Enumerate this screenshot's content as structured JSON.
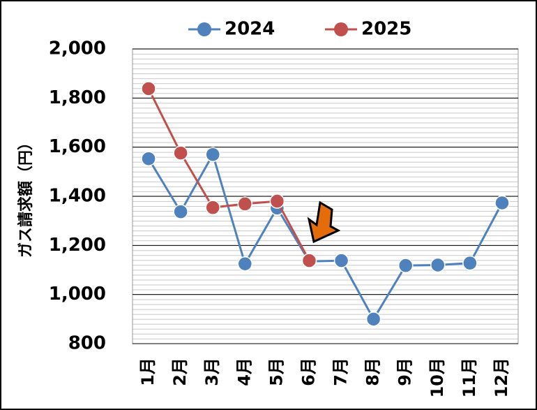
{
  "chart_data": {
    "type": "line",
    "y_axis_label": "ガス請求額（円）",
    "categories": [
      "1月",
      "2月",
      "3月",
      "4月",
      "5月",
      "6月",
      "7月",
      "8月",
      "9月",
      "10月",
      "11月",
      "12月"
    ],
    "series": [
      {
        "name": "2024",
        "color": "#4f81bd",
        "values": [
          1553,
          1337,
          1570,
          1125,
          1352,
          1135,
          1138,
          900,
          1118,
          1120,
          1128,
          1373
        ]
      },
      {
        "name": "2025",
        "color": "#c0504d",
        "values": [
          1838,
          1576,
          1354,
          1369,
          1380,
          1138,
          null,
          null,
          null,
          null,
          null,
          null
        ]
      }
    ],
    "ylim": [
      800,
      2000
    ],
    "yticks": [
      800,
      {
        "value": 1000,
        "label": "1,000"
      },
      {
        "value": 1200,
        "label": "1,200"
      },
      {
        "value": 1400,
        "label": "1,400"
      },
      {
        "value": 1600,
        "label": "1,600"
      },
      {
        "value": 1800,
        "label": "1,800"
      },
      {
        "value": 2000,
        "label": "2,000"
      }
    ],
    "grid": true,
    "legend": "top"
  }
}
